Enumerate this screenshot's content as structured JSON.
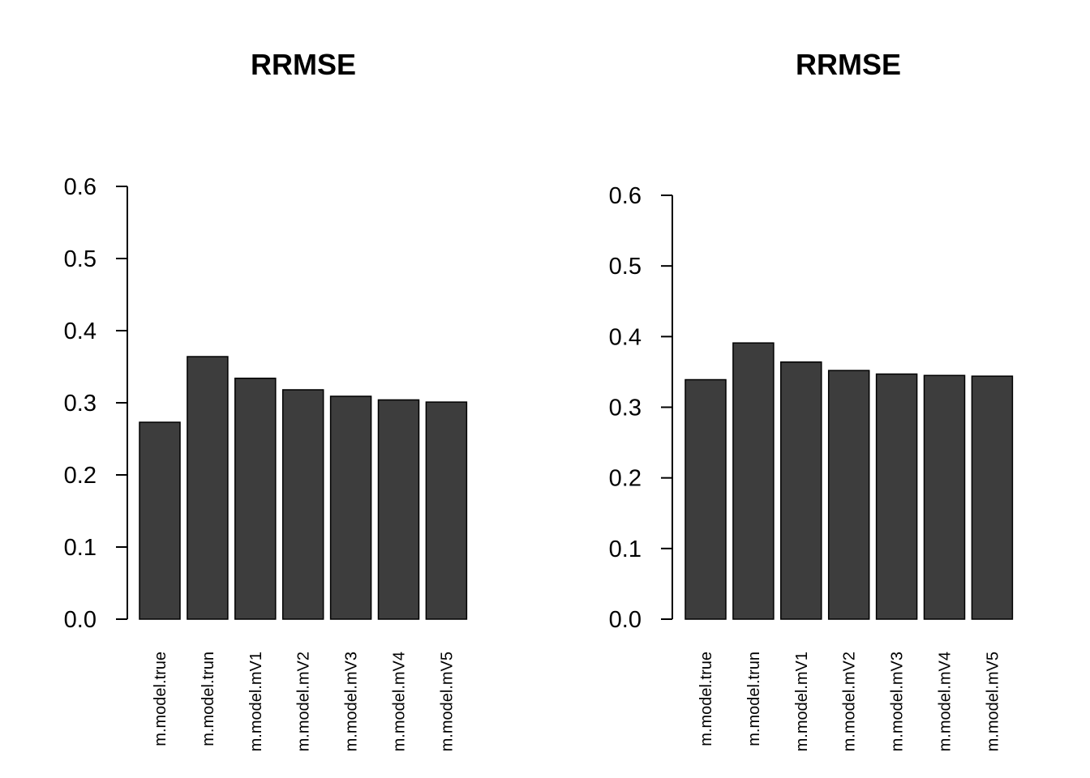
{
  "chart_data": [
    {
      "type": "bar",
      "title": "RRMSE",
      "xlabel": "",
      "ylabel": "",
      "ylim": [
        0,
        0.6
      ],
      "yticks": [
        "0.0",
        "0.1",
        "0.2",
        "0.3",
        "0.4",
        "0.5",
        "0.6"
      ],
      "categories": [
        "m.model.true",
        "m.model.trun",
        "m.model.mV1",
        "m.model.mV2",
        "m.model.mV3",
        "m.model.mV4",
        "m.model.mV5"
      ],
      "values": [
        0.273,
        0.364,
        0.334,
        0.318,
        0.309,
        0.304,
        0.301
      ],
      "bar_color": "#3d3d3d",
      "grid": false
    },
    {
      "type": "bar",
      "title": "RRMSE",
      "xlabel": "",
      "ylabel": "",
      "ylim": [
        0,
        0.6
      ],
      "yticks": [
        "0.0",
        "0.1",
        "0.2",
        "0.3",
        "0.4",
        "0.5",
        "0.6"
      ],
      "categories": [
        "m.model.true",
        "m.model.trun",
        "m.model.mV1",
        "m.model.mV2",
        "m.model.mV3",
        "m.model.mV4",
        "m.model.mV5"
      ],
      "values": [
        0.339,
        0.391,
        0.364,
        0.352,
        0.347,
        0.345,
        0.344
      ],
      "bar_color": "#3d3d3d",
      "grid": false
    }
  ]
}
